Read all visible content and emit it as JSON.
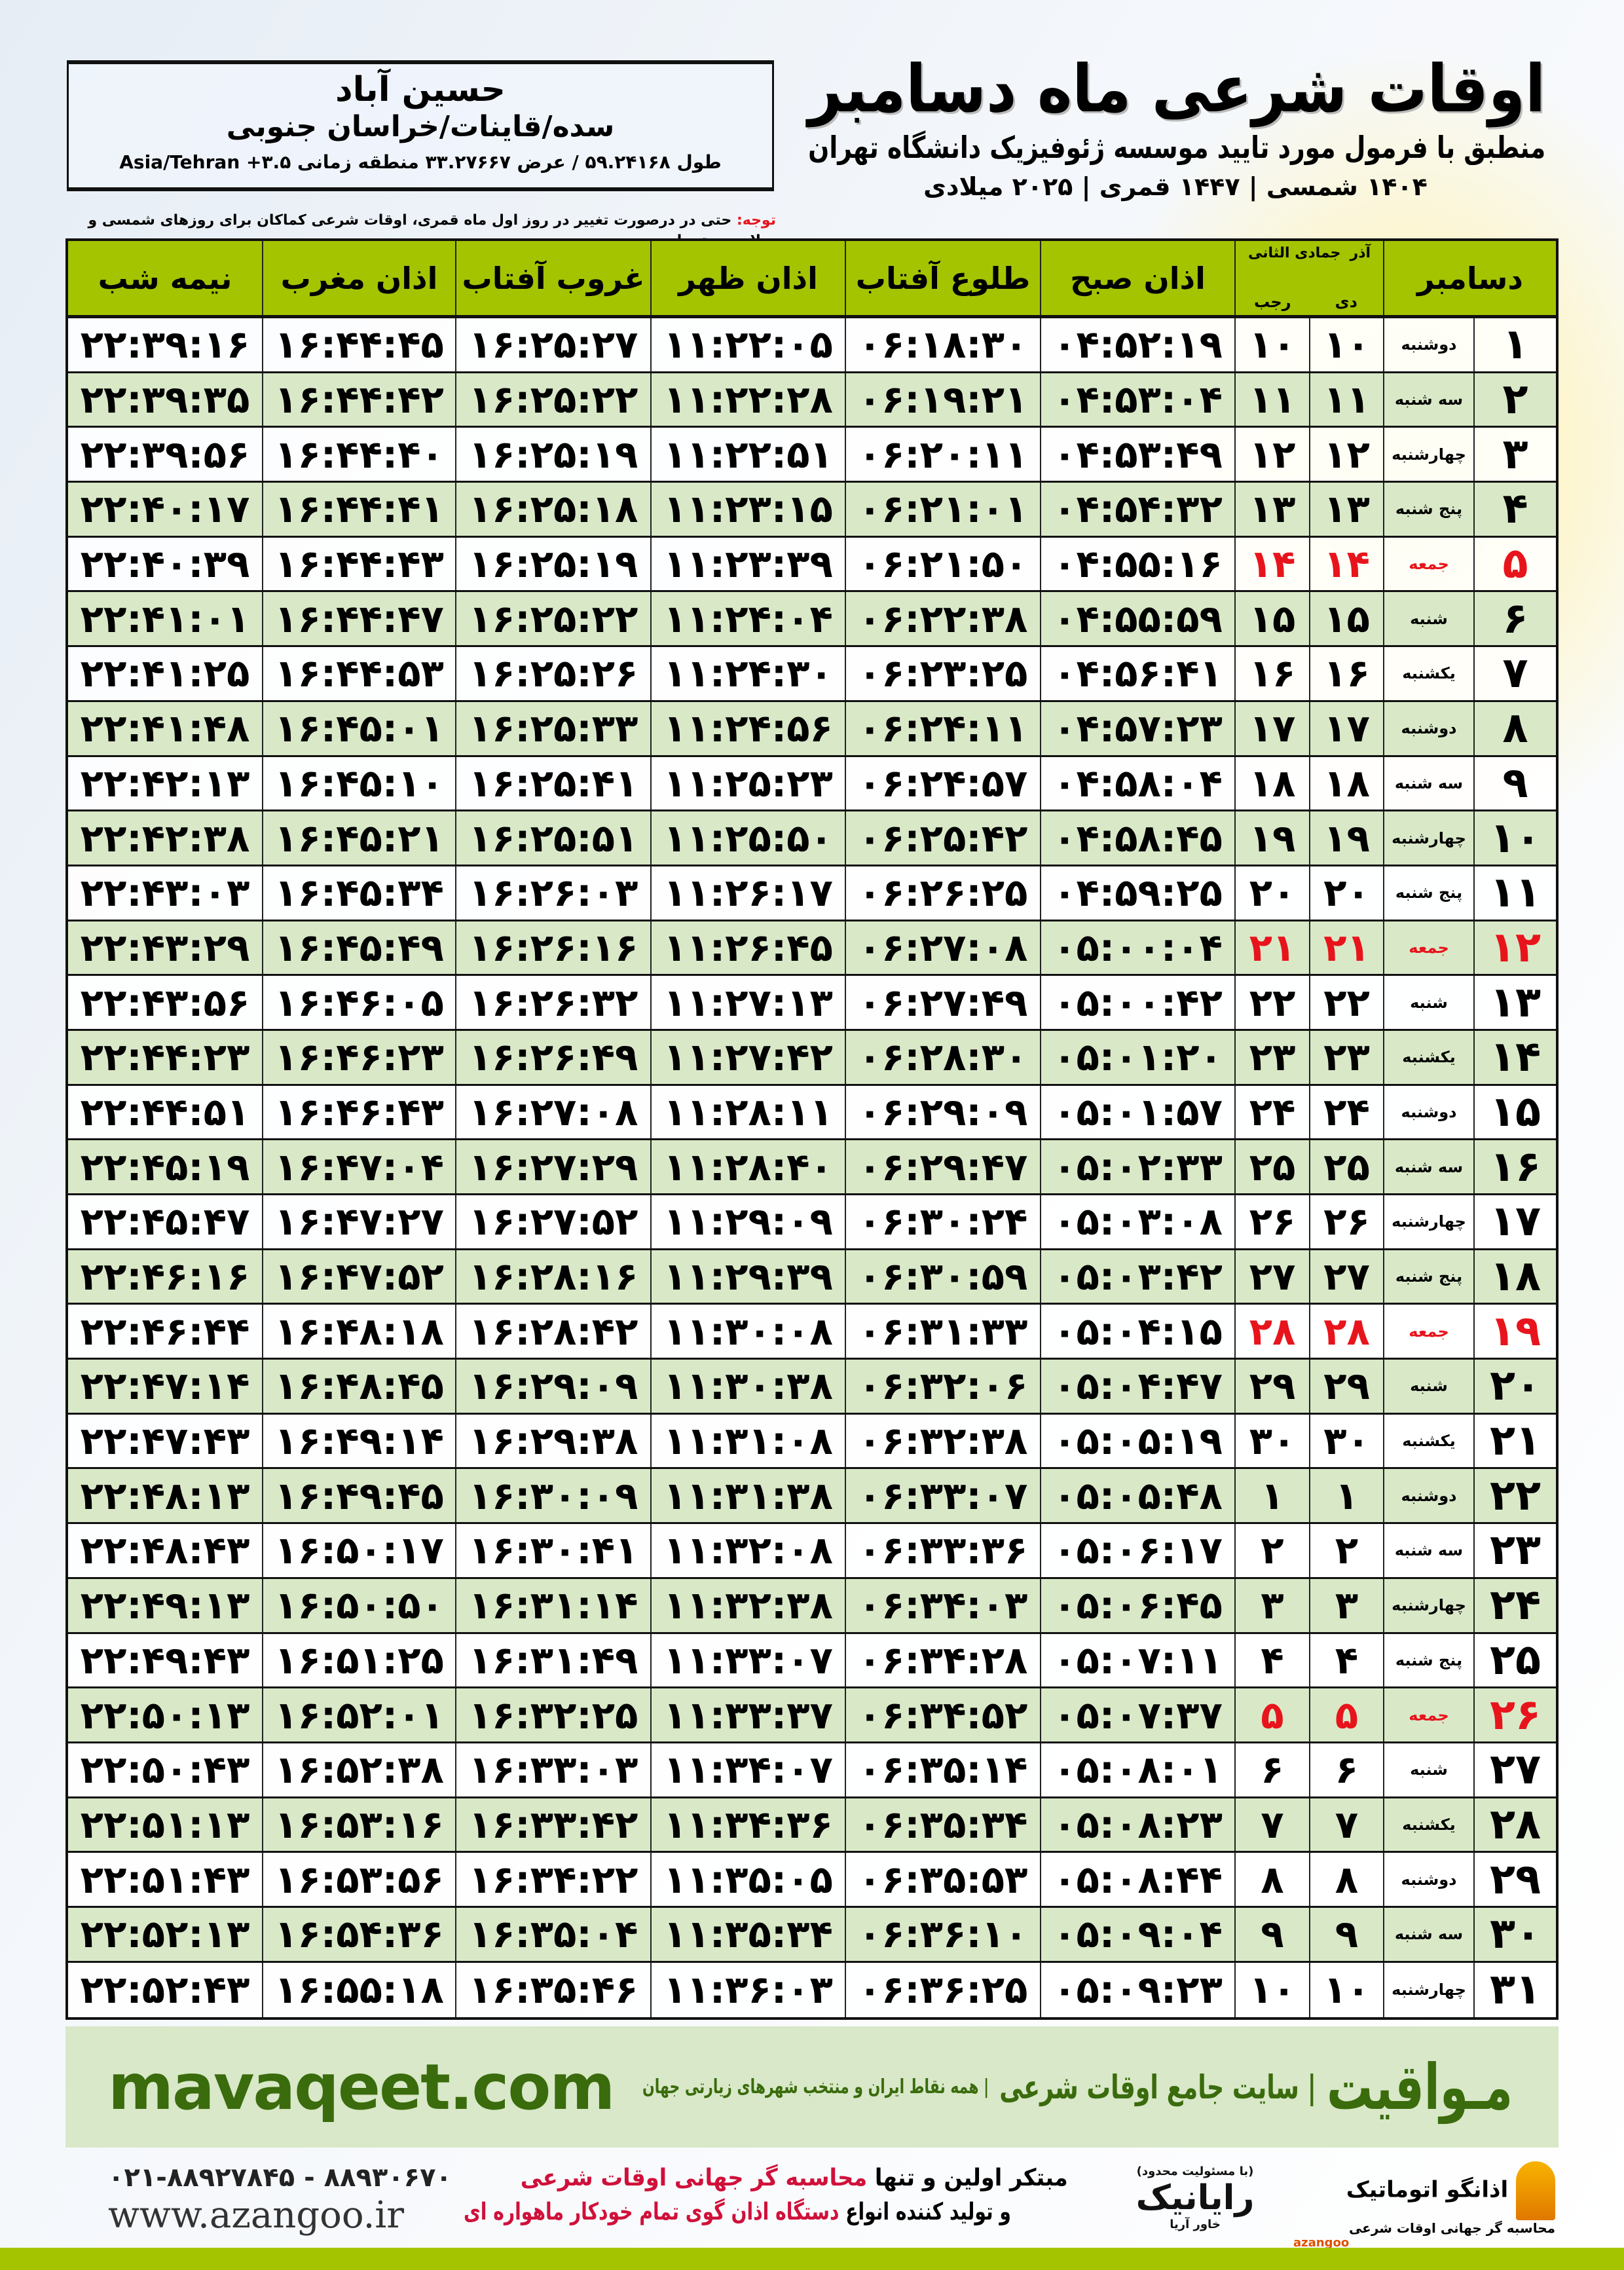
{
  "location": {
    "name": "حسین آباد",
    "region": "سده/قاینات/خراسان جنوبی",
    "coords": "طول ۵۹.۲۴۱۶۸ / عرض ۳۳.۲۷۶۶۷ منطقه زمانی ۳.۵+ Asia/Tehran"
  },
  "header": {
    "title": "اوقات شرعی ماه دسامبر",
    "subtitle": "منطبق با فرمول مورد تایید موسسه ژئوفیزیک دانشگاه تهران",
    "dateline": "۱۴۰۴ شمسی | ۱۴۴۷ قمری | ۲۰۲۵ میلادی"
  },
  "note": {
    "label": "توجه:",
    "text": " حتی در درصورت تغییر در روز اول ماه قمری، اوقات شرعی کماکان برای روزهای شمسی و میلادی معتبر است."
  },
  "table": {
    "columns": {
      "nimeshab": "نیمه شب",
      "maghreb": "اذان مغرب",
      "ghorub": "غروب آفتاب",
      "zohr": "اذان ظهر",
      "tolu": "طلوع آفتاب",
      "sobh": "اذان صبح",
      "jumada": "جمادی الثانی",
      "azar": "آذر",
      "rajab": "رجب",
      "dey": "دی",
      "december": "دسامبر"
    },
    "holiday_color": "#e8141c",
    "header_color": "#a4c400",
    "rows": [
      [
        "۱",
        "دوشنبه",
        "۱۰",
        "۱۰",
        "۰۴:۵۲:۱۹",
        "۰۶:۱۸:۳۰",
        "۱۱:۲۲:۰۵",
        "۱۶:۲۵:۲۷",
        "۱۶:۴۴:۴۵",
        "۲۲:۳۹:۱۶",
        false
      ],
      [
        "۲",
        "سه شنبه",
        "۱۱",
        "۱۱",
        "۰۴:۵۳:۰۴",
        "۰۶:۱۹:۲۱",
        "۱۱:۲۲:۲۸",
        "۱۶:۲۵:۲۲",
        "۱۶:۴۴:۴۲",
        "۲۲:۳۹:۳۵",
        false
      ],
      [
        "۳",
        "چهارشنبه",
        "۱۲",
        "۱۲",
        "۰۴:۵۳:۴۹",
        "۰۶:۲۰:۱۱",
        "۱۱:۲۲:۵۱",
        "۱۶:۲۵:۱۹",
        "۱۶:۴۴:۴۰",
        "۲۲:۳۹:۵۶",
        false
      ],
      [
        "۴",
        "پنج شنبه",
        "۱۳",
        "۱۳",
        "۰۴:۵۴:۳۲",
        "۰۶:۲۱:۰۱",
        "۱۱:۲۳:۱۵",
        "۱۶:۲۵:۱۸",
        "۱۶:۴۴:۴۱",
        "۲۲:۴۰:۱۷",
        false
      ],
      [
        "۵",
        "جمعه",
        "۱۴",
        "۱۴",
        "۰۴:۵۵:۱۶",
        "۰۶:۲۱:۵۰",
        "۱۱:۲۳:۳۹",
        "۱۶:۲۵:۱۹",
        "۱۶:۴۴:۴۳",
        "۲۲:۴۰:۳۹",
        true
      ],
      [
        "۶",
        "شنبه",
        "۱۵",
        "۱۵",
        "۰۴:۵۵:۵۹",
        "۰۶:۲۲:۳۸",
        "۱۱:۲۴:۰۴",
        "۱۶:۲۵:۲۲",
        "۱۶:۴۴:۴۷",
        "۲۲:۴۱:۰۱",
        false
      ],
      [
        "۷",
        "یکشنبه",
        "۱۶",
        "۱۶",
        "۰۴:۵۶:۴۱",
        "۰۶:۲۳:۲۵",
        "۱۱:۲۴:۳۰",
        "۱۶:۲۵:۲۶",
        "۱۶:۴۴:۵۳",
        "۲۲:۴۱:۲۵",
        false
      ],
      [
        "۸",
        "دوشنبه",
        "۱۷",
        "۱۷",
        "۰۴:۵۷:۲۳",
        "۰۶:۲۴:۱۱",
        "۱۱:۲۴:۵۶",
        "۱۶:۲۵:۳۳",
        "۱۶:۴۵:۰۱",
        "۲۲:۴۱:۴۸",
        false
      ],
      [
        "۹",
        "سه شنبه",
        "۱۸",
        "۱۸",
        "۰۴:۵۸:۰۴",
        "۰۶:۲۴:۵۷",
        "۱۱:۲۵:۲۳",
        "۱۶:۲۵:۴۱",
        "۱۶:۴۵:۱۰",
        "۲۲:۴۲:۱۳",
        false
      ],
      [
        "۱۰",
        "چهارشنبه",
        "۱۹",
        "۱۹",
        "۰۴:۵۸:۴۵",
        "۰۶:۲۵:۴۲",
        "۱۱:۲۵:۵۰",
        "۱۶:۲۵:۵۱",
        "۱۶:۴۵:۲۱",
        "۲۲:۴۲:۳۸",
        false
      ],
      [
        "۱۱",
        "پنج شنبه",
        "۲۰",
        "۲۰",
        "۰۴:۵۹:۲۵",
        "۰۶:۲۶:۲۵",
        "۱۱:۲۶:۱۷",
        "۱۶:۲۶:۰۳",
        "۱۶:۴۵:۳۴",
        "۲۲:۴۳:۰۳",
        false
      ],
      [
        "۱۲",
        "جمعه",
        "۲۱",
        "۲۱",
        "۰۵:۰۰:۰۴",
        "۰۶:۲۷:۰۸",
        "۱۱:۲۶:۴۵",
        "۱۶:۲۶:۱۶",
        "۱۶:۴۵:۴۹",
        "۲۲:۴۳:۲۹",
        true
      ],
      [
        "۱۳",
        "شنبه",
        "۲۲",
        "۲۲",
        "۰۵:۰۰:۴۲",
        "۰۶:۲۷:۴۹",
        "۱۱:۲۷:۱۳",
        "۱۶:۲۶:۳۲",
        "۱۶:۴۶:۰۵",
        "۲۲:۴۳:۵۶",
        false
      ],
      [
        "۱۴",
        "یکشنبه",
        "۲۳",
        "۲۳",
        "۰۵:۰۱:۲۰",
        "۰۶:۲۸:۳۰",
        "۱۱:۲۷:۴۲",
        "۱۶:۲۶:۴۹",
        "۱۶:۴۶:۲۳",
        "۲۲:۴۴:۲۳",
        false
      ],
      [
        "۱۵",
        "دوشنبه",
        "۲۴",
        "۲۴",
        "۰۵:۰۱:۵۷",
        "۰۶:۲۹:۰۹",
        "۱۱:۲۸:۱۱",
        "۱۶:۲۷:۰۸",
        "۱۶:۴۶:۴۳",
        "۲۲:۴۴:۵۱",
        false
      ],
      [
        "۱۶",
        "سه شنبه",
        "۲۵",
        "۲۵",
        "۰۵:۰۲:۳۳",
        "۰۶:۲۹:۴۷",
        "۱۱:۲۸:۴۰",
        "۱۶:۲۷:۲۹",
        "۱۶:۴۷:۰۴",
        "۲۲:۴۵:۱۹",
        false
      ],
      [
        "۱۷",
        "چهارشنبه",
        "۲۶",
        "۲۶",
        "۰۵:۰۳:۰۸",
        "۰۶:۳۰:۲۴",
        "۱۱:۲۹:۰۹",
        "۱۶:۲۷:۵۲",
        "۱۶:۴۷:۲۷",
        "۲۲:۴۵:۴۷",
        false
      ],
      [
        "۱۸",
        "پنج شنبه",
        "۲۷",
        "۲۷",
        "۰۵:۰۳:۴۲",
        "۰۶:۳۰:۵۹",
        "۱۱:۲۹:۳۹",
        "۱۶:۲۸:۱۶",
        "۱۶:۴۷:۵۲",
        "۲۲:۴۶:۱۶",
        false
      ],
      [
        "۱۹",
        "جمعه",
        "۲۸",
        "۲۸",
        "۰۵:۰۴:۱۵",
        "۰۶:۳۱:۳۳",
        "۱۱:۳۰:۰۸",
        "۱۶:۲۸:۴۲",
        "۱۶:۴۸:۱۸",
        "۲۲:۴۶:۴۴",
        true
      ],
      [
        "۲۰",
        "شنبه",
        "۲۹",
        "۲۹",
        "۰۵:۰۴:۴۷",
        "۰۶:۳۲:۰۶",
        "۱۱:۳۰:۳۸",
        "۱۶:۲۹:۰۹",
        "۱۶:۴۸:۴۵",
        "۲۲:۴۷:۱۴",
        false
      ],
      [
        "۲۱",
        "یکشنبه",
        "۳۰",
        "۳۰",
        "۰۵:۰۵:۱۹",
        "۰۶:۳۲:۳۸",
        "۱۱:۳۱:۰۸",
        "۱۶:۲۹:۳۸",
        "۱۶:۴۹:۱۴",
        "۲۲:۴۷:۴۳",
        false
      ],
      [
        "۲۲",
        "دوشنبه",
        "۱",
        "۱",
        "۰۵:۰۵:۴۸",
        "۰۶:۳۳:۰۷",
        "۱۱:۳۱:۳۸",
        "۱۶:۳۰:۰۹",
        "۱۶:۴۹:۴۵",
        "۲۲:۴۸:۱۳",
        false
      ],
      [
        "۲۳",
        "سه شنبه",
        "۲",
        "۲",
        "۰۵:۰۶:۱۷",
        "۰۶:۳۳:۳۶",
        "۱۱:۳۲:۰۸",
        "۱۶:۳۰:۴۱",
        "۱۶:۵۰:۱۷",
        "۲۲:۴۸:۴۳",
        false
      ],
      [
        "۲۴",
        "چهارشنبه",
        "۳",
        "۳",
        "۰۵:۰۶:۴۵",
        "۰۶:۳۴:۰۳",
        "۱۱:۳۲:۳۸",
        "۱۶:۳۱:۱۴",
        "۱۶:۵۰:۵۰",
        "۲۲:۴۹:۱۳",
        false
      ],
      [
        "۲۵",
        "پنج شنبه",
        "۴",
        "۴",
        "۰۵:۰۷:۱۱",
        "۰۶:۳۴:۲۸",
        "۱۱:۳۳:۰۷",
        "۱۶:۳۱:۴۹",
        "۱۶:۵۱:۲۵",
        "۲۲:۴۹:۴۳",
        false
      ],
      [
        "۲۶",
        "جمعه",
        "۵",
        "۵",
        "۰۵:۰۷:۳۷",
        "۰۶:۳۴:۵۲",
        "۱۱:۳۳:۳۷",
        "۱۶:۳۲:۲۵",
        "۱۶:۵۲:۰۱",
        "۲۲:۵۰:۱۳",
        true
      ],
      [
        "۲۷",
        "شنبه",
        "۶",
        "۶",
        "۰۵:۰۸:۰۱",
        "۰۶:۳۵:۱۴",
        "۱۱:۳۴:۰۷",
        "۱۶:۳۳:۰۳",
        "۱۶:۵۲:۳۸",
        "۲۲:۵۰:۴۳",
        false
      ],
      [
        "۲۸",
        "یکشنبه",
        "۷",
        "۷",
        "۰۵:۰۸:۲۳",
        "۰۶:۳۵:۳۴",
        "۱۱:۳۴:۳۶",
        "۱۶:۳۳:۴۲",
        "۱۶:۵۳:۱۶",
        "۲۲:۵۱:۱۳",
        false
      ],
      [
        "۲۹",
        "دوشنبه",
        "۸",
        "۸",
        "۰۵:۰۸:۴۴",
        "۰۶:۳۵:۵۳",
        "۱۱:۳۵:۰۵",
        "۱۶:۳۴:۲۲",
        "۱۶:۵۳:۵۶",
        "۲۲:۵۱:۴۳",
        false
      ],
      [
        "۳۰",
        "سه شنبه",
        "۹",
        "۹",
        "۰۵:۰۹:۰۴",
        "۰۶:۳۶:۱۰",
        "۱۱:۳۵:۳۴",
        "۱۶:۳۵:۰۴",
        "۱۶:۵۴:۳۶",
        "۲۲:۵۲:۱۳",
        false
      ],
      [
        "۳۱",
        "چهارشنبه",
        "۱۰",
        "۱۰",
        "۰۵:۰۹:۲۳",
        "۰۶:۳۶:۲۵",
        "۱۱:۳۶:۰۳",
        "۱۶:۳۵:۴۶",
        "۱۶:۵۵:۱۸",
        "۲۲:۵۲:۴۳",
        false
      ]
    ]
  },
  "banner": {
    "url": "mavaqeet.com",
    "brand": "مـواقیت",
    "tagline": "| سایت جامع اوقات شرعی",
    "sub": "| همه نقاط ایران و منتخب شهرهای زیارتی جهان"
  },
  "footer": {
    "phones": "۰۲۱-۸۸۹۲۷۸۴۵ - ۸۸۹۳۰۶۷۰",
    "website": "www.azangoo.ir",
    "promo1a": "مبتکر اولین و تنها ",
    "promo1b": "محاسبه گر جهانی اوقات شرعی",
    "promo2a": "و تولید کننده انواع ",
    "promo2b": "دستگاه اذان گوی تمام خودکار ماهواره ای",
    "rayanik": "رایانیک",
    "rayanik_sub": "خاور آریا",
    "rayanik_note": "(با مسئولیت محدود)",
    "azangoo": "اذانگو اتوماتیک",
    "azangoo_sub": "محاسبه گر جهانی اوقات شرعی",
    "azangoo_latin": "azangoo"
  }
}
